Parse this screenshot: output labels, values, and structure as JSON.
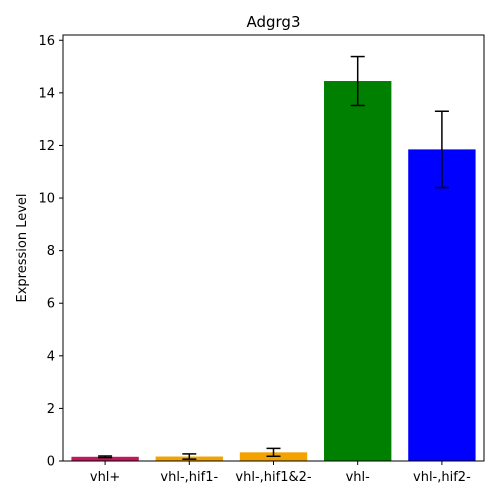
{
  "chart_data": {
    "type": "bar",
    "title": "Adgrg3",
    "xlabel": "",
    "ylabel": "Expression Level",
    "categories": [
      "vhl+",
      "vhl-,hif1-",
      "vhl-,hif1&2-",
      "vhl-",
      "vhl-,hif2-"
    ],
    "values": [
      0.16,
      0.17,
      0.33,
      14.45,
      11.85
    ],
    "errors": [
      0.03,
      0.1,
      0.15,
      0.93,
      1.45
    ],
    "colors": [
      "#c2185b",
      "#f2a300",
      "#f2a300",
      "#008000",
      "#0000ff"
    ],
    "ylim": [
      0,
      16.2
    ],
    "yticks": [
      0,
      2,
      4,
      6,
      8,
      10,
      12,
      14,
      16
    ],
    "grid": false,
    "legend": "none"
  }
}
